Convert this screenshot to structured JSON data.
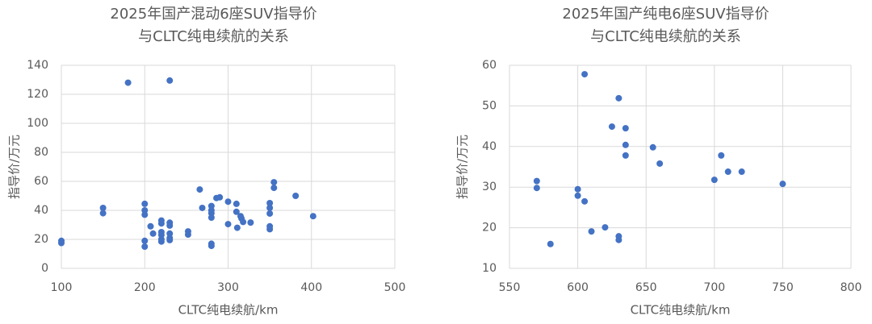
{
  "chart_data": [
    {
      "type": "scatter",
      "title": [
        "2025年国产混动6座SUV指导价",
        "与CLTC纯电续航的关系"
      ],
      "x_label": "CLTC纯电续航/km",
      "y_label": "指导价/万元",
      "color": "#4472c4",
      "grid": true,
      "xlim": [
        100,
        500
      ],
      "xticks": [
        100,
        200,
        300,
        400,
        500
      ],
      "ylim": [
        0,
        140
      ],
      "yticks": [
        0,
        20,
        40,
        60,
        80,
        100,
        120,
        140
      ],
      "x": [
        100,
        100,
        150,
        150,
        180,
        230,
        200,
        200,
        200,
        200,
        200,
        207,
        210,
        220,
        220,
        230,
        230,
        230,
        230,
        230,
        220,
        220,
        220,
        220,
        252,
        252,
        266,
        269,
        280,
        280,
        280,
        280,
        280,
        280,
        286,
        290,
        300,
        300,
        310,
        310,
        311,
        315,
        316,
        318,
        327,
        350,
        350,
        350,
        350,
        350,
        355,
        355,
        381,
        402
      ],
      "values": [
        19,
        17.5,
        41.7,
        38,
        128,
        129.5,
        44.5,
        40,
        37,
        19,
        15,
        29,
        24,
        33,
        31,
        31.5,
        29.5,
        21,
        19.5,
        24,
        25,
        23,
        20,
        18.5,
        25.5,
        23.3,
        54.4,
        41.7,
        43,
        40,
        38,
        35,
        17,
        15.5,
        48.5,
        49,
        46,
        30.5,
        44.5,
        39,
        28,
        36,
        34.5,
        32,
        31.6,
        45,
        41.7,
        37.8,
        29,
        27,
        59.4,
        55.5,
        50,
        36
      ]
    },
    {
      "type": "scatter",
      "title": [
        "2025年国产纯电6座SUV指导价",
        "与CLTC纯电续航的关系"
      ],
      "x_label": "CLTC纯电续航/km",
      "y_label": "指导价/万元",
      "color": "#4472c4",
      "grid": true,
      "xlim": [
        550,
        800
      ],
      "xticks": [
        550,
        600,
        650,
        700,
        750,
        800
      ],
      "ylim": [
        10,
        60
      ],
      "yticks": [
        10,
        20,
        30,
        40,
        50,
        60
      ],
      "x": [
        570,
        570,
        580,
        600,
        600,
        605,
        605,
        610,
        620,
        630,
        630,
        630,
        625,
        635,
        635,
        635,
        655,
        660,
        700,
        705,
        710,
        720,
        750
      ],
      "values": [
        31.5,
        29.8,
        16,
        29.5,
        27.9,
        57.8,
        26.5,
        19.1,
        20.1,
        51.9,
        17.9,
        17,
        44.9,
        44.5,
        40.4,
        37.8,
        39.8,
        35.8,
        31.8,
        37.8,
        33.8,
        33.8,
        30.8
      ]
    }
  ]
}
